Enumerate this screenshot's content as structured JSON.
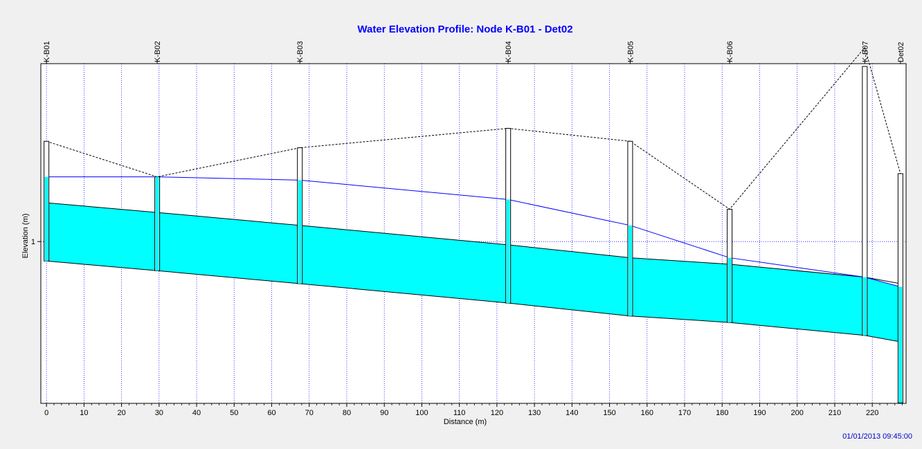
{
  "chart_data": {
    "type": "area",
    "title": "Water Elevation Profile:  Node K-B01 - Det02",
    "xlabel": "Distance (m)",
    "ylabel": "Elevation (m)",
    "xlim": [
      -1.5,
      229
    ],
    "ylim": [
      0.5,
      1.55
    ],
    "x_ticks": [
      0,
      10,
      20,
      30,
      40,
      50,
      60,
      70,
      80,
      90,
      100,
      110,
      120,
      130,
      140,
      150,
      160,
      170,
      180,
      190,
      200,
      210,
      220
    ],
    "y_ticks": [
      1
    ],
    "grid": true,
    "timestamp": "01/01/2013 09:45:00",
    "nodes": [
      {
        "name": "K-B01",
        "x": 0,
        "invert": 0.94,
        "ground": 1.31,
        "water": 1.2
      },
      {
        "name": "K-B02",
        "x": 29.5,
        "invert": 0.91,
        "ground": 1.2,
        "water": 1.2
      },
      {
        "name": "K-B03",
        "x": 67.5,
        "invert": 0.87,
        "ground": 1.29,
        "water": 1.19
      },
      {
        "name": "K-B04",
        "x": 123,
        "invert": 0.81,
        "ground": 1.35,
        "water": 1.13
      },
      {
        "name": "K-B05",
        "x": 155.5,
        "invert": 0.77,
        "ground": 1.31,
        "water": 1.05
      },
      {
        "name": "K-B06",
        "x": 182,
        "invert": 0.75,
        "ground": 1.1,
        "water": 0.95
      },
      {
        "name": "K-B07",
        "x": 218,
        "invert": 0.71,
        "ground": 1.6,
        "water": 0.89
      },
      {
        "name": "Det02",
        "x": 227.5,
        "invert": 0.5,
        "ground": 1.21,
        "water": 0.86
      }
    ],
    "links": [
      {
        "from": "K-B01",
        "to": "K-B02",
        "inv_up": 0.94,
        "inv_dn": 0.91,
        "crown_up": 1.12,
        "crown_dn": 1.09
      },
      {
        "from": "K-B02",
        "to": "K-B03",
        "inv_up": 0.91,
        "inv_dn": 0.87,
        "crown_up": 1.09,
        "crown_dn": 1.05
      },
      {
        "from": "K-B03",
        "to": "K-B04",
        "inv_up": 0.87,
        "inv_dn": 0.81,
        "crown_up": 1.05,
        "crown_dn": 0.99
      },
      {
        "from": "K-B04",
        "to": "K-B05",
        "inv_up": 0.81,
        "inv_dn": 0.77,
        "crown_up": 0.99,
        "crown_dn": 0.95
      },
      {
        "from": "K-B05",
        "to": "K-B06",
        "inv_up": 0.77,
        "inv_dn": 0.75,
        "crown_up": 0.95,
        "crown_dn": 0.93
      },
      {
        "from": "K-B06",
        "to": "K-B07",
        "inv_up": 0.75,
        "inv_dn": 0.71,
        "crown_up": 0.93,
        "crown_dn": 0.89
      },
      {
        "from": "K-B07",
        "to": "Det02",
        "inv_up": 0.71,
        "inv_dn": 0.69,
        "crown_up": 0.89,
        "crown_dn": 0.87
      }
    ],
    "colors": {
      "water": "#00ffff",
      "hgl": "#0000ff",
      "grid": "#0000ff",
      "title": "#0000ff",
      "stamp": "#0000cc"
    }
  }
}
